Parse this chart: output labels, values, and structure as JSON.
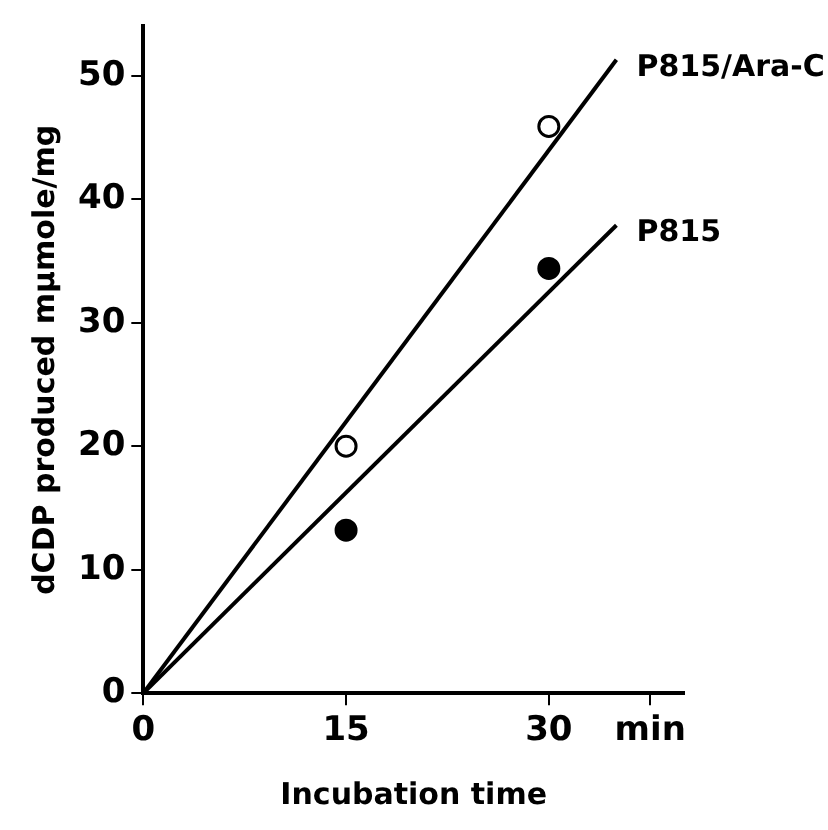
{
  "chart_data": {
    "type": "scatter",
    "xlabel": "Incubation time",
    "ylabel": "dCDP produced mµmole/mg",
    "xlim": [
      0,
      40
    ],
    "xticks": [
      0,
      15,
      30,
      {
        "value": 37.5,
        "label": "min"
      }
    ],
    "ylim": [
      0,
      54
    ],
    "yticks": [
      0,
      10,
      20,
      30,
      40,
      50
    ],
    "grid": false,
    "legend": false,
    "marker": "circle",
    "series": [
      {
        "type": "line",
        "name": "P815/Ara-C",
        "color": "#000000",
        "x": [
          0,
          35
        ],
        "values": [
          0,
          51.3
        ],
        "marker": "none",
        "line_style": "solid"
      },
      {
        "type": "line",
        "name": "P815",
        "color": "#000000",
        "x": [
          0,
          35
        ],
        "values": [
          0,
          37.9
        ],
        "marker": "none",
        "line_style": "solid"
      },
      {
        "type": "scatter",
        "color": "#ffffff",
        "x": [
          15,
          30
        ],
        "values": [
          20,
          45.9
        ]
      },
      {
        "type": "scatter",
        "color": "#000000",
        "x": [
          15,
          30
        ],
        "values": [
          13.2,
          34.4
        ]
      }
    ]
  }
}
